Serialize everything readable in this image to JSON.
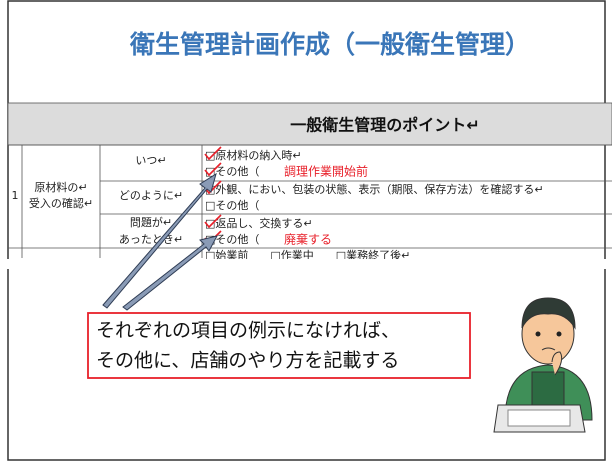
{
  "title": "衛生管理計画作成（一般衛生管理）",
  "table": {
    "header": "一般衛生管理のポイント↵",
    "number": "1",
    "category": [
      "原材料の↵",
      "受入の確認↵"
    ],
    "items": [
      {
        "question": [
          "いつ↵"
        ],
        "lines": [
          {
            "text": "□原材料の納入時↵"
          },
          {
            "text": "□その他（",
            "note": "調理作業開始前"
          }
        ]
      },
      {
        "question": [
          "どのように↵"
        ],
        "lines": [
          {
            "text": "□外観、におい、包装の状態、表示（期限、保存方法）を確認する↵"
          },
          {
            "text": "□その他（"
          }
        ]
      },
      {
        "question": [
          "問題が↵",
          "あったとき↵"
        ],
        "lines": [
          {
            "text": "□返品し、交換する↵"
          },
          {
            "text": "□その他（",
            "note": "廃棄する"
          }
        ]
      }
    ],
    "next_line": "□始業前　　□作業中　　□業務終了後↵"
  },
  "callout": [
    "それぞれの項目の例示になければ、",
    "その他に、店舗のやり方を記載する"
  ]
}
